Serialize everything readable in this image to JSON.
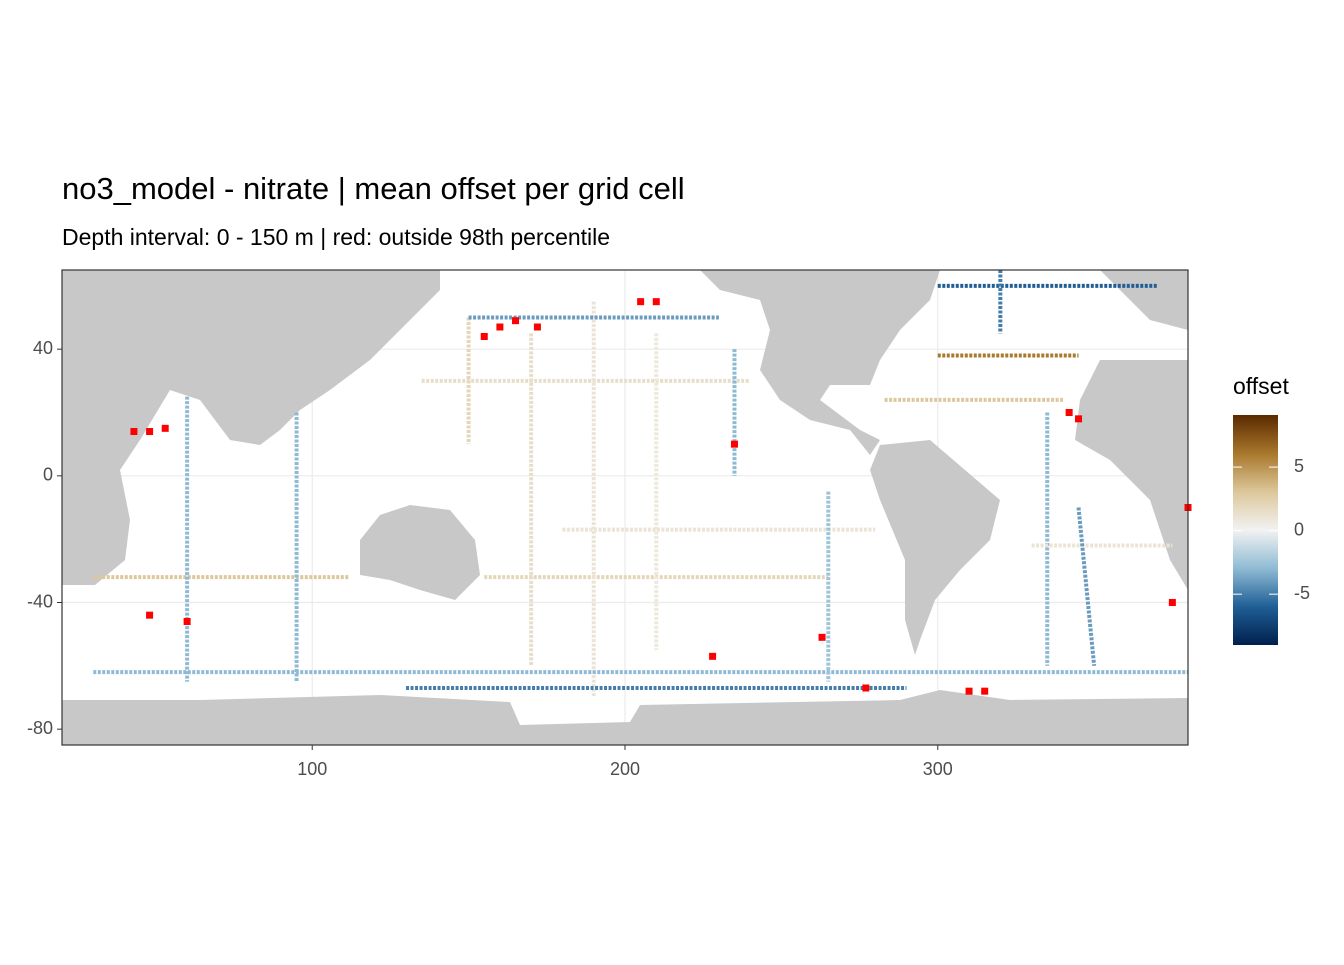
{
  "chart_data": {
    "type": "raster-map",
    "title": "no3_model - nitrate  | mean offset per grid cell",
    "subtitle": "Depth interval: 0 - 150 m | red: outside 98th percentile",
    "xlim": [
      20,
      380
    ],
    "ylim": [
      -85,
      65
    ],
    "xticks": [
      100,
      200,
      300
    ],
    "yticks": [
      -80,
      -40,
      0,
      40
    ],
    "grid": true,
    "legend": {
      "title": "offset",
      "clim": [
        -9,
        9.1
      ],
      "ticks": [
        -5,
        0,
        5
      ],
      "colors": [
        "#00204d",
        "#1f5f96",
        "#8fbbd4",
        "#f2f2f2",
        "#dcc79a",
        "#a8772c",
        "#5a2a00"
      ]
    },
    "outlier_color": "#ff0000",
    "tracks": [
      {
        "lon": [
          155,
          265
        ],
        "lat": [
          -32,
          -32
        ],
        "offset": 2
      },
      {
        "lon": [
          30,
          112
        ],
        "lat": [
          -32,
          -32
        ],
        "offset": 3
      },
      {
        "lon": [
          135,
          240
        ],
        "lat": [
          30,
          30
        ],
        "offset": 1.5
      },
      {
        "lon": [
          283,
          340
        ],
        "lat": [
          24,
          24
        ],
        "offset": 3
      },
      {
        "lon": [
          190,
          190
        ],
        "lat": [
          55,
          -70
        ],
        "offset": 1
      },
      {
        "lon": [
          170,
          170
        ],
        "lat": [
          45,
          -60
        ],
        "offset": 1.5
      },
      {
        "lon": [
          150,
          150
        ],
        "lat": [
          50,
          10
        ],
        "offset": 2
      },
      {
        "lon": [
          210,
          210
        ],
        "lat": [
          45,
          -55
        ],
        "offset": 0.8
      },
      {
        "lon": [
          180,
          280
        ],
        "lat": [
          -17,
          -17
        ],
        "offset": 1
      },
      {
        "lon": [
          60,
          60
        ],
        "lat": [
          25,
          -65
        ],
        "offset": -3
      },
      {
        "lon": [
          95,
          95
        ],
        "lat": [
          20,
          -65
        ],
        "offset": -3
      },
      {
        "lon": [
          30,
          380
        ],
        "lat": [
          -62,
          -62
        ],
        "offset": -3
      },
      {
        "lon": [
          130,
          290
        ],
        "lat": [
          -67,
          -67
        ],
        "offset": -5
      },
      {
        "lon": [
          300,
          370
        ],
        "lat": [
          60,
          60
        ],
        "offset": -6
      },
      {
        "lon": [
          320,
          320
        ],
        "lat": [
          65,
          45
        ],
        "offset": -5
      },
      {
        "lon": [
          335,
          335
        ],
        "lat": [
          20,
          -60
        ],
        "offset": -3
      },
      {
        "lon": [
          300,
          345
        ],
        "lat": [
          38,
          38
        ],
        "offset": 6
      },
      {
        "lon": [
          150,
          230
        ],
        "lat": [
          50,
          50
        ],
        "offset": -4
      },
      {
        "lon": [
          330,
          375
        ],
        "lat": [
          -22,
          -22
        ],
        "offset": 1
      },
      {
        "lon": [
          345,
          350
        ],
        "lat": [
          -10,
          -60
        ],
        "offset": -4
      },
      {
        "lon": [
          265,
          265
        ],
        "lat": [
          -5,
          -65
        ],
        "offset": -2.5
      },
      {
        "lon": [
          235,
          235
        ],
        "lat": [
          40,
          0
        ],
        "offset": -3
      }
    ],
    "outliers": {
      "lon": [
        155,
        160,
        165,
        172,
        205,
        210,
        48,
        60,
        43,
        48,
        53,
        345,
        342,
        263,
        310,
        315,
        375,
        380,
        235,
        228,
        277
      ],
      "lat": [
        44,
        47,
        49,
        47,
        55,
        55,
        -44,
        -46,
        14,
        14,
        15,
        18,
        20,
        -51,
        -68,
        -68,
        -40,
        -10,
        10,
        -57,
        -67
      ]
    }
  }
}
